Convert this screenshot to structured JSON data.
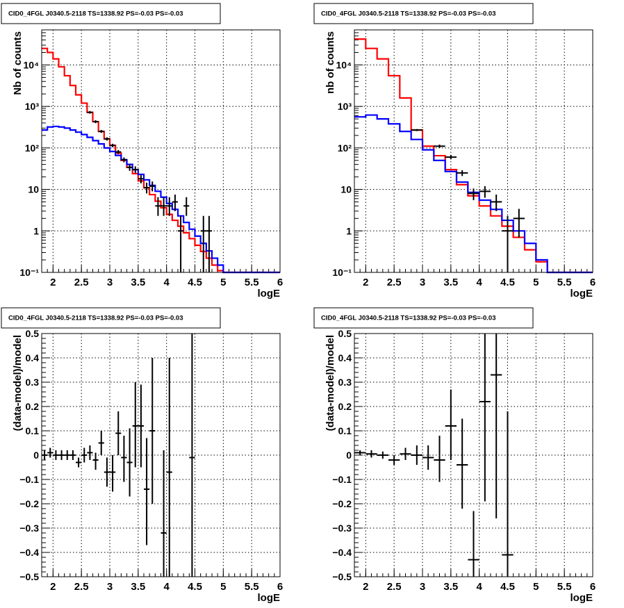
{
  "chart_data": [
    {
      "type": "step-histogram",
      "title": "CID0_4FGL J0340.5-2118 TS=1338.92 PS=-0.03 PS=-0.03",
      "xlabel": "logE",
      "ylabel": "Nb of counts",
      "xlim": [
        1.8,
        6.0
      ],
      "ylim": [
        0.1,
        70000
      ],
      "yscale": "log",
      "grid": true,
      "xticks": [
        "2",
        "2.5",
        "3",
        "3.5",
        "4",
        "4.5",
        "5",
        "5.5",
        "6"
      ],
      "yticks": [
        "10⁻¹",
        "1",
        "10",
        "10²",
        "10³",
        "10⁴"
      ],
      "series": [
        {
          "color": "#ff0000",
          "edges": [
            1.8,
            1.9,
            2.0,
            2.1,
            2.2,
            2.3,
            2.4,
            2.5,
            2.6,
            2.7,
            2.8,
            2.9,
            3.0,
            3.1,
            3.2,
            3.3,
            3.4,
            3.5,
            3.6,
            3.7,
            3.8,
            3.9,
            4.0,
            4.1,
            4.2,
            4.3,
            4.4,
            4.5,
            4.6,
            4.7,
            4.8,
            4.9,
            5.0,
            5.1,
            5.2,
            5.3,
            5.4,
            5.5,
            5.6,
            5.7,
            5.8,
            5.9,
            6.0
          ],
          "values": [
            25000,
            20000,
            14000,
            9000,
            5500,
            3200,
            1900,
            1200,
            720,
            430,
            250,
            165,
            115,
            75,
            50,
            34,
            24,
            16,
            11,
            7.5,
            5.2,
            3.6,
            2.5,
            1.8,
            1.3,
            0.9,
            0.65,
            0.45,
            0.32,
            0.22,
            0.15,
            0.11,
            0.1,
            0.1,
            0.1,
            0.1,
            0.1,
            0.1,
            0.1,
            0.1,
            0.1,
            0.1
          ]
        },
        {
          "color": "#0000ff",
          "edges": [
            1.8,
            1.9,
            2.0,
            2.1,
            2.2,
            2.3,
            2.4,
            2.5,
            2.6,
            2.7,
            2.8,
            2.9,
            3.0,
            3.1,
            3.2,
            3.3,
            3.4,
            3.5,
            3.6,
            3.7,
            3.8,
            3.9,
            4.0,
            4.1,
            4.2,
            4.3,
            4.4,
            4.5,
            4.6,
            4.7,
            4.8,
            4.9,
            5.0,
            5.1,
            5.2,
            5.3,
            5.4,
            5.5,
            5.6,
            5.7,
            5.8,
            5.9,
            6.0
          ],
          "values": [
            270,
            320,
            330,
            320,
            300,
            270,
            240,
            210,
            180,
            150,
            125,
            100,
            82,
            66,
            52,
            40,
            30,
            23,
            17,
            12.5,
            9,
            6.5,
            4.6,
            3.3,
            2.3,
            1.6,
            1.1,
            0.75,
            0.5,
            0.33,
            0.22,
            0.15,
            0.1,
            0.1,
            0.1,
            0.1,
            0.1,
            0.1,
            0.1,
            0.1,
            0.1,
            0.1
          ]
        }
      ],
      "points": [
        {
          "x": 2.65,
          "y": 720,
          "ylo": 670,
          "yhi": 775,
          "dx": 0.05
        },
        {
          "x": 2.75,
          "y": 430,
          "ylo": 395,
          "yhi": 465,
          "dx": 0.05
        },
        {
          "x": 2.85,
          "y": 250,
          "ylo": 230,
          "yhi": 272,
          "dx": 0.05
        },
        {
          "x": 2.95,
          "y": 165,
          "ylo": 150,
          "yhi": 180,
          "dx": 0.05
        },
        {
          "x": 3.05,
          "y": 115,
          "ylo": 104,
          "yhi": 126,
          "dx": 0.05
        },
        {
          "x": 3.15,
          "y": 80,
          "ylo": 71,
          "yhi": 89,
          "dx": 0.05
        },
        {
          "x": 3.25,
          "y": 52,
          "ylo": 45,
          "yhi": 59,
          "dx": 0.05
        },
        {
          "x": 3.35,
          "y": 34,
          "ylo": 28,
          "yhi": 40,
          "dx": 0.05
        },
        {
          "x": 3.45,
          "y": 30,
          "ylo": 25,
          "yhi": 36,
          "dx": 0.05
        },
        {
          "x": 3.55,
          "y": 18,
          "ylo": 14,
          "yhi": 22,
          "dx": 0.05
        },
        {
          "x": 3.65,
          "y": 11,
          "ylo": 8,
          "yhi": 14.5,
          "dx": 0.05
        },
        {
          "x": 3.75,
          "y": 12,
          "ylo": 9,
          "yhi": 15.5,
          "dx": 0.05
        },
        {
          "x": 3.85,
          "y": 4,
          "ylo": 2.3,
          "yhi": 6.5,
          "dx": 0.05
        },
        {
          "x": 3.95,
          "y": 4,
          "ylo": 2.3,
          "yhi": 6.5,
          "dx": 0.05
        },
        {
          "x": 4.05,
          "y": 4,
          "ylo": 2.3,
          "yhi": 6.5,
          "dx": 0.05
        },
        {
          "x": 4.15,
          "y": 5,
          "ylo": 3,
          "yhi": 7.5,
          "dx": 0.05
        },
        {
          "x": 4.25,
          "y": 1,
          "ylo": 0.1,
          "yhi": 2.3,
          "dx": 0.05
        },
        {
          "x": 4.35,
          "y": 4,
          "ylo": 2.3,
          "yhi": 6.5,
          "dx": 0.05
        },
        {
          "x": 4.65,
          "y": 1,
          "ylo": 0.1,
          "yhi": 2.3,
          "dx": 0.05
        },
        {
          "x": 4.75,
          "y": 1,
          "ylo": 0.1,
          "yhi": 2.3,
          "dx": 0.05
        }
      ]
    },
    {
      "type": "step-histogram",
      "title": "CID0_4FGL J0340.5-2118 TS=1338.92 PS=-0.03 PS=-0.03",
      "xlabel": "logE",
      "ylabel": "nb of counts",
      "xlim": [
        1.8,
        6.0
      ],
      "ylim": [
        0.1,
        70000
      ],
      "yscale": "log",
      "grid": true,
      "xticks": [
        "2",
        "2.5",
        "3",
        "3.5",
        "4",
        "4.5",
        "5",
        "5.5",
        "6"
      ],
      "yticks": [
        "10⁻¹",
        "1",
        "10",
        "10²",
        "10³",
        "10⁴"
      ],
      "series": [
        {
          "color": "#ff0000",
          "edges": [
            1.8,
            2.0,
            2.2,
            2.4,
            2.6,
            2.8,
            3.0,
            3.2,
            3.4,
            3.6,
            3.8,
            4.0,
            4.2,
            4.4,
            4.6,
            4.8,
            5.0,
            5.2,
            5.4,
            5.6,
            5.8,
            6.0
          ],
          "values": [
            42000,
            25000,
            14000,
            5500,
            1600,
            270,
            110,
            65,
            30,
            13,
            7,
            4,
            2.3,
            1.3,
            0.7,
            0.35,
            0.18,
            0.1,
            0.1,
            0.1,
            0.1
          ]
        },
        {
          "color": "#0000ff",
          "edges": [
            1.8,
            2.0,
            2.2,
            2.4,
            2.6,
            2.8,
            3.0,
            3.2,
            3.4,
            3.6,
            3.8,
            4.0,
            4.2,
            4.4,
            4.6,
            4.8,
            5.0,
            5.2,
            5.4,
            5.6,
            5.8,
            6.0
          ],
          "values": [
            560,
            620,
            500,
            380,
            250,
            160,
            90,
            50,
            27,
            15,
            8.5,
            5.5,
            3.3,
            1.8,
            1,
            0.5,
            0.2,
            0.1,
            0.1,
            0.1,
            0.1
          ]
        }
      ],
      "points": [
        {
          "x": 2.9,
          "y": 270,
          "ylo": 255,
          "yhi": 285,
          "dx": 0.1
        },
        {
          "x": 3.3,
          "y": 110,
          "ylo": 100,
          "yhi": 120,
          "dx": 0.1
        },
        {
          "x": 3.5,
          "y": 60,
          "ylo": 53,
          "yhi": 68,
          "dx": 0.1
        },
        {
          "x": 3.7,
          "y": 25,
          "ylo": 21,
          "yhi": 29,
          "dx": 0.1
        },
        {
          "x": 3.9,
          "y": 8,
          "ylo": 5.5,
          "yhi": 10.5,
          "dx": 0.1
        },
        {
          "x": 4.1,
          "y": 9,
          "ylo": 6.3,
          "yhi": 12,
          "dx": 0.1
        },
        {
          "x": 4.3,
          "y": 5,
          "ylo": 3,
          "yhi": 7.5,
          "dx": 0.1
        },
        {
          "x": 4.5,
          "y": 1,
          "ylo": 0.1,
          "yhi": 2.3,
          "dx": 0.1
        },
        {
          "x": 4.7,
          "y": 2,
          "ylo": 0.7,
          "yhi": 3.4,
          "dx": 0.1
        }
      ]
    },
    {
      "type": "scatter-errorbars",
      "title": "CID0_4FGL J0340.5-2118 TS=1338.92 PS=-0.03 PS=-0.03",
      "xlabel": "logE",
      "ylabel": "(data-model)/model",
      "xlim": [
        1.8,
        6.0
      ],
      "ylim": [
        -0.5,
        0.5
      ],
      "yscale": "linear",
      "grid": true,
      "xticks": [
        "2",
        "2.5",
        "3",
        "3.5",
        "4",
        "4.5",
        "5",
        "5.5",
        "6"
      ],
      "yticks": [
        "−0.5",
        "−0.4",
        "−0.3",
        "−0.2",
        "−0.1",
        "0",
        "0.1",
        "0.2",
        "0.3",
        "0.4",
        "0.5"
      ],
      "points": [
        {
          "x": 1.85,
          "y": 0.0,
          "ylo": -0.02,
          "yhi": 0.02,
          "dx": 0.05
        },
        {
          "x": 1.95,
          "y": 0.01,
          "ylo": -0.01,
          "yhi": 0.03,
          "dx": 0.05
        },
        {
          "x": 2.05,
          "y": 0.0,
          "ylo": -0.02,
          "yhi": 0.02,
          "dx": 0.05
        },
        {
          "x": 2.15,
          "y": 0.0,
          "ylo": -0.02,
          "yhi": 0.02,
          "dx": 0.05
        },
        {
          "x": 2.25,
          "y": 0.0,
          "ylo": -0.02,
          "yhi": 0.02,
          "dx": 0.05
        },
        {
          "x": 2.35,
          "y": 0.0,
          "ylo": -0.02,
          "yhi": 0.02,
          "dx": 0.05
        },
        {
          "x": 2.45,
          "y": -0.03,
          "ylo": -0.05,
          "yhi": -0.01,
          "dx": 0.05
        },
        {
          "x": 2.55,
          "y": 0.0,
          "ylo": -0.03,
          "yhi": 0.03,
          "dx": 0.05
        },
        {
          "x": 2.65,
          "y": 0.01,
          "ylo": -0.02,
          "yhi": 0.04,
          "dx": 0.05
        },
        {
          "x": 2.75,
          "y": -0.02,
          "ylo": -0.06,
          "yhi": 0.01,
          "dx": 0.05
        },
        {
          "x": 2.85,
          "y": 0.05,
          "ylo": 0.0,
          "yhi": 0.1,
          "dx": 0.05
        },
        {
          "x": 2.95,
          "y": -0.07,
          "ylo": -0.13,
          "yhi": -0.01,
          "dx": 0.05
        },
        {
          "x": 3.05,
          "y": -0.07,
          "ylo": -0.15,
          "yhi": 0.0,
          "dx": 0.05
        },
        {
          "x": 3.15,
          "y": 0.09,
          "ylo": 0.0,
          "yhi": 0.18,
          "dx": 0.05
        },
        {
          "x": 3.25,
          "y": -0.01,
          "ylo": -0.11,
          "yhi": 0.08,
          "dx": 0.05
        },
        {
          "x": 3.35,
          "y": -0.03,
          "ylo": -0.17,
          "yhi": 0.11,
          "dx": 0.05
        },
        {
          "x": 3.45,
          "y": 0.12,
          "ylo": -0.05,
          "yhi": 0.3,
          "dx": 0.05
        },
        {
          "x": 3.55,
          "y": 0.12,
          "ylo": -0.05,
          "yhi": 0.29,
          "dx": 0.05
        },
        {
          "x": 3.65,
          "y": -0.14,
          "ylo": -0.37,
          "yhi": 0.07,
          "dx": 0.05
        },
        {
          "x": 3.75,
          "y": 0.1,
          "ylo": -0.2,
          "yhi": 0.4,
          "dx": 0.05
        },
        {
          "x": 3.95,
          "y": -0.32,
          "ylo": -0.5,
          "yhi": 0.02,
          "dx": 0.05
        },
        {
          "x": 4.05,
          "y": -0.07,
          "ylo": -0.5,
          "yhi": 0.4,
          "dx": 0.05
        },
        {
          "x": 4.45,
          "y": -0.01,
          "ylo": -0.5,
          "yhi": 0.5,
          "dx": 0.05
        }
      ]
    },
    {
      "type": "scatter-errorbars",
      "title": "CID0_4FGL J0340.5-2118 TS=1338.92 PS=-0.03 PS=-0.03",
      "xlabel": "logE",
      "ylabel": "(data-model)/model",
      "xlim": [
        1.8,
        6.0
      ],
      "ylim": [
        -0.5,
        0.5
      ],
      "yscale": "linear",
      "grid": true,
      "xticks": [
        "2",
        "2.5",
        "3",
        "3.5",
        "4",
        "4.5",
        "5",
        "5.5",
        "6"
      ],
      "yticks": [
        "−0.5",
        "−0.4",
        "−0.3",
        "−0.2",
        "−0.1",
        "0",
        "0.1",
        "0.2",
        "0.3",
        "0.4",
        "0.5"
      ],
      "points": [
        {
          "x": 1.9,
          "y": 0.01,
          "ylo": 0.0,
          "yhi": 0.02,
          "dx": 0.1
        },
        {
          "x": 2.1,
          "y": 0.005,
          "ylo": -0.01,
          "yhi": 0.02,
          "dx": 0.1
        },
        {
          "x": 2.3,
          "y": 0.0,
          "ylo": -0.015,
          "yhi": 0.015,
          "dx": 0.1
        },
        {
          "x": 2.5,
          "y": -0.02,
          "ylo": -0.04,
          "yhi": 0.0,
          "dx": 0.1
        },
        {
          "x": 2.7,
          "y": 0.005,
          "ylo": -0.02,
          "yhi": 0.03,
          "dx": 0.1
        },
        {
          "x": 2.9,
          "y": 0.0,
          "ylo": -0.04,
          "yhi": 0.04,
          "dx": 0.1
        },
        {
          "x": 3.1,
          "y": -0.01,
          "ylo": -0.06,
          "yhi": 0.04,
          "dx": 0.1
        },
        {
          "x": 3.3,
          "y": -0.02,
          "ylo": -0.11,
          "yhi": 0.08,
          "dx": 0.1
        },
        {
          "x": 3.5,
          "y": 0.12,
          "ylo": -0.02,
          "yhi": 0.27,
          "dx": 0.1
        },
        {
          "x": 3.7,
          "y": -0.04,
          "ylo": -0.22,
          "yhi": 0.15,
          "dx": 0.1
        },
        {
          "x": 3.9,
          "y": -0.43,
          "ylo": -0.5,
          "yhi": -0.23,
          "dx": 0.1
        },
        {
          "x": 4.1,
          "y": 0.22,
          "ylo": -0.19,
          "yhi": 0.5,
          "dx": 0.1
        },
        {
          "x": 4.3,
          "y": 0.33,
          "ylo": -0.26,
          "yhi": 0.5,
          "dx": 0.1
        },
        {
          "x": 4.5,
          "y": -0.41,
          "ylo": -0.5,
          "yhi": 0.18,
          "dx": 0.1
        }
      ]
    }
  ]
}
